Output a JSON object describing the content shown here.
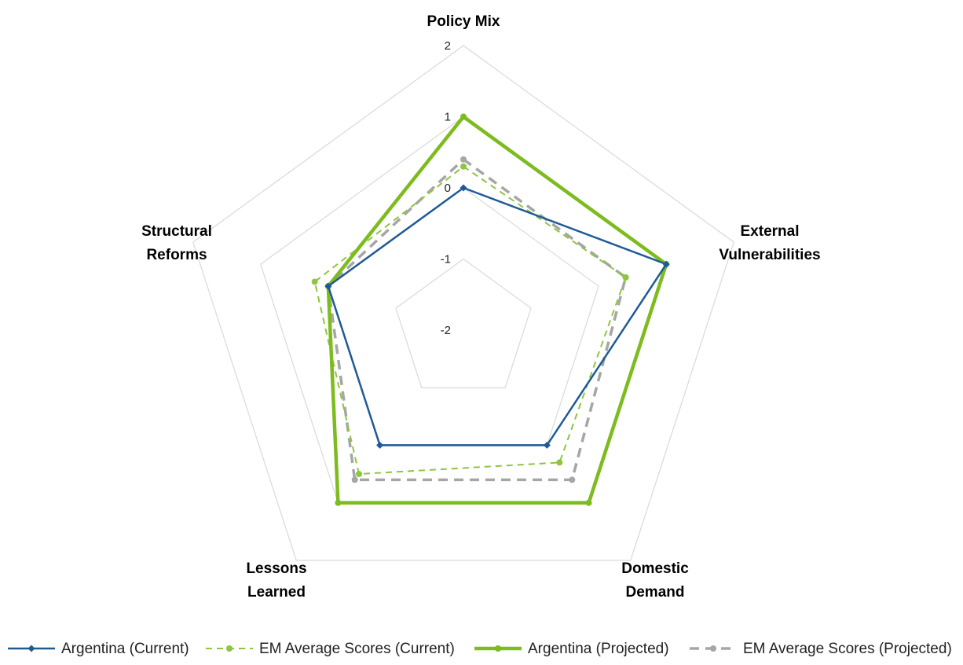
{
  "chart_data": {
    "type": "radar",
    "axes": [
      "Policy Mix",
      "External Vulnerabilities",
      "Domestic Demand",
      "Lessons Learned",
      "Structural Reforms"
    ],
    "axis_label_lines": [
      [
        "Policy Mix"
      ],
      [
        "External",
        "Vulnerabilities"
      ],
      [
        "Domestic",
        "Demand"
      ],
      [
        "Lessons",
        "Learned"
      ],
      [
        "Structural",
        "Reforms"
      ]
    ],
    "rlim": [
      -2,
      2
    ],
    "ticks": [
      "2",
      "1",
      "0",
      "-1",
      "-2"
    ],
    "tick_values": [
      2,
      1,
      0,
      -1,
      -2
    ],
    "grid": true,
    "legend_position": "bottom",
    "series": [
      {
        "name": "Argentina (Current)",
        "values": [
          0.0,
          1.0,
          0.0,
          0.0,
          0.0
        ],
        "color": "#1f5a96",
        "line": "solid",
        "marker": "diamond"
      },
      {
        "name": "EM Average Scores (Current)",
        "values": [
          0.3,
          0.4,
          0.3,
          0.5,
          0.2
        ],
        "color": "#8dc63f",
        "line": "dashed",
        "marker": "circle"
      },
      {
        "name": "Argentina (Projected)",
        "values": [
          1.0,
          1.0,
          1.0,
          1.0,
          0.0
        ],
        "color": "#7dbb1e",
        "line": "solid-thick",
        "marker": "circle"
      },
      {
        "name": "EM Average Scores (Projected)",
        "values": [
          0.4,
          0.4,
          0.6,
          0.6,
          0.0
        ],
        "color": "#a6a6a6",
        "line": "dashed-thick",
        "marker": "circle"
      }
    ]
  }
}
